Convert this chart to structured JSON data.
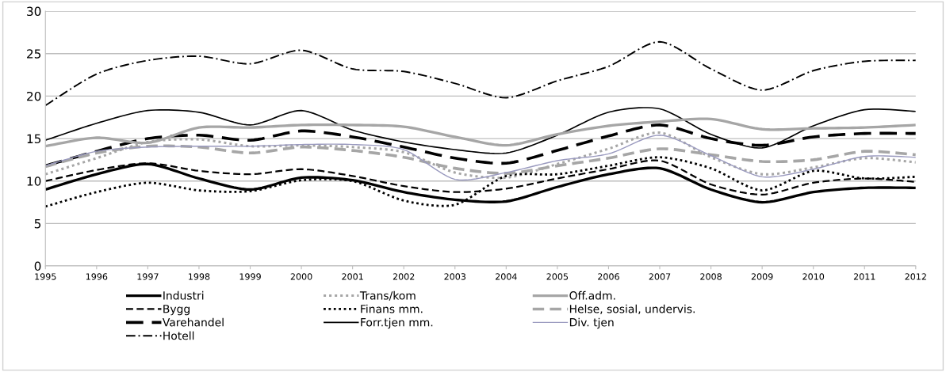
{
  "chart_data": {
    "type": "line",
    "x": [
      1995,
      1996,
      1997,
      1998,
      1999,
      2000,
      2001,
      2002,
      2003,
      2004,
      2005,
      2006,
      2007,
      2008,
      2009,
      2010,
      2011,
      2012
    ],
    "xlim": [
      1995,
      2012
    ],
    "xticks": [
      1995,
      1996,
      1997,
      1998,
      1999,
      2000,
      2001,
      2002,
      2003,
      2004,
      2005,
      2006,
      2007,
      2008,
      2009,
      2010,
      2011,
      2012
    ],
    "ylim": [
      0,
      30
    ],
    "yticks": [
      0,
      5,
      10,
      15,
      20,
      25,
      30
    ],
    "grid": "y",
    "legend": "bottom",
    "marker": "none",
    "series": [
      {
        "name": "Industri",
        "color": "#000000",
        "line_style": "solid",
        "values": [
          9.0,
          10.8,
          12.0,
          10.3,
          9.0,
          10.4,
          10.1,
          8.7,
          7.8,
          7.6,
          9.3,
          10.8,
          11.5,
          9.0,
          7.5,
          8.7,
          9.2,
          9.2
        ]
      },
      {
        "name": "Bygg",
        "color": "#000000",
        "line_style": "dashed",
        "values": [
          10.0,
          11.3,
          12.1,
          11.2,
          10.8,
          11.4,
          10.6,
          9.4,
          8.7,
          9.1,
          10.3,
          11.4,
          12.4,
          9.6,
          8.4,
          9.8,
          10.3,
          9.9
        ]
      },
      {
        "name": "Varehandel",
        "color": "#000000",
        "line_style": "dashed",
        "values": [
          11.8,
          13.5,
          15.0,
          15.4,
          14.8,
          15.9,
          15.2,
          14.0,
          12.7,
          12.1,
          13.6,
          15.3,
          16.6,
          15.0,
          14.2,
          15.2,
          15.6,
          15.6
        ]
      },
      {
        "name": "Hotell",
        "color": "#000000",
        "line_style": "dashdot",
        "values": [
          18.9,
          22.6,
          24.2,
          24.7,
          23.8,
          25.4,
          23.2,
          22.9,
          21.5,
          19.8,
          21.8,
          23.5,
          26.4,
          23.2,
          20.7,
          23.0,
          24.1,
          24.2
        ]
      },
      {
        "name": "Trans/kom",
        "color": "#a6a6a6",
        "line_style": "dotted",
        "values": [
          10.8,
          12.7,
          14.6,
          14.9,
          14.1,
          14.2,
          14.0,
          13.4,
          11.0,
          10.4,
          12.0,
          13.8,
          15.7,
          12.8,
          10.8,
          11.6,
          12.7,
          12.2
        ]
      },
      {
        "name": "Finans mm.",
        "color": "#000000",
        "line_style": "dotted",
        "values": [
          7.0,
          8.7,
          9.8,
          8.9,
          8.8,
          10.1,
          10.0,
          7.7,
          7.2,
          10.6,
          10.8,
          11.8,
          12.8,
          11.5,
          8.9,
          11.2,
          10.3,
          10.5
        ]
      },
      {
        "name": "Forr.tjen mm.",
        "color": "#000000",
        "line_style": "solid",
        "values": [
          14.8,
          16.8,
          18.3,
          18.1,
          16.6,
          18.3,
          16.0,
          14.6,
          13.7,
          13.3,
          15.4,
          18.1,
          18.5,
          15.5,
          13.9,
          16.5,
          18.4,
          18.2
        ]
      },
      {
        "name": "Off.adm.",
        "color": "#a6a6a6",
        "line_style": "solid",
        "values": [
          14.1,
          15.1,
          14.5,
          16.3,
          16.3,
          16.6,
          16.6,
          16.4,
          15.2,
          14.2,
          15.5,
          16.5,
          17.0,
          17.3,
          16.1,
          16.2,
          16.3,
          16.6
        ]
      },
      {
        "name": "Helse, sosial, undervis.",
        "color": "#a6a6a6",
        "line_style": "dashed",
        "values": [
          11.7,
          13.3,
          14.1,
          14.0,
          13.3,
          14.0,
          13.6,
          12.8,
          11.5,
          10.9,
          11.8,
          12.7,
          13.8,
          13.1,
          12.3,
          12.5,
          13.5,
          13.1
        ]
      },
      {
        "name": "Div. tjen",
        "color": "#9a9abf",
        "line_style": "solid",
        "values": [
          11.8,
          13.5,
          14.0,
          14.1,
          14.1,
          14.3,
          14.3,
          13.7,
          10.2,
          11.0,
          12.4,
          13.2,
          15.4,
          13.0,
          10.5,
          11.4,
          12.9,
          12.8
        ]
      }
    ]
  }
}
